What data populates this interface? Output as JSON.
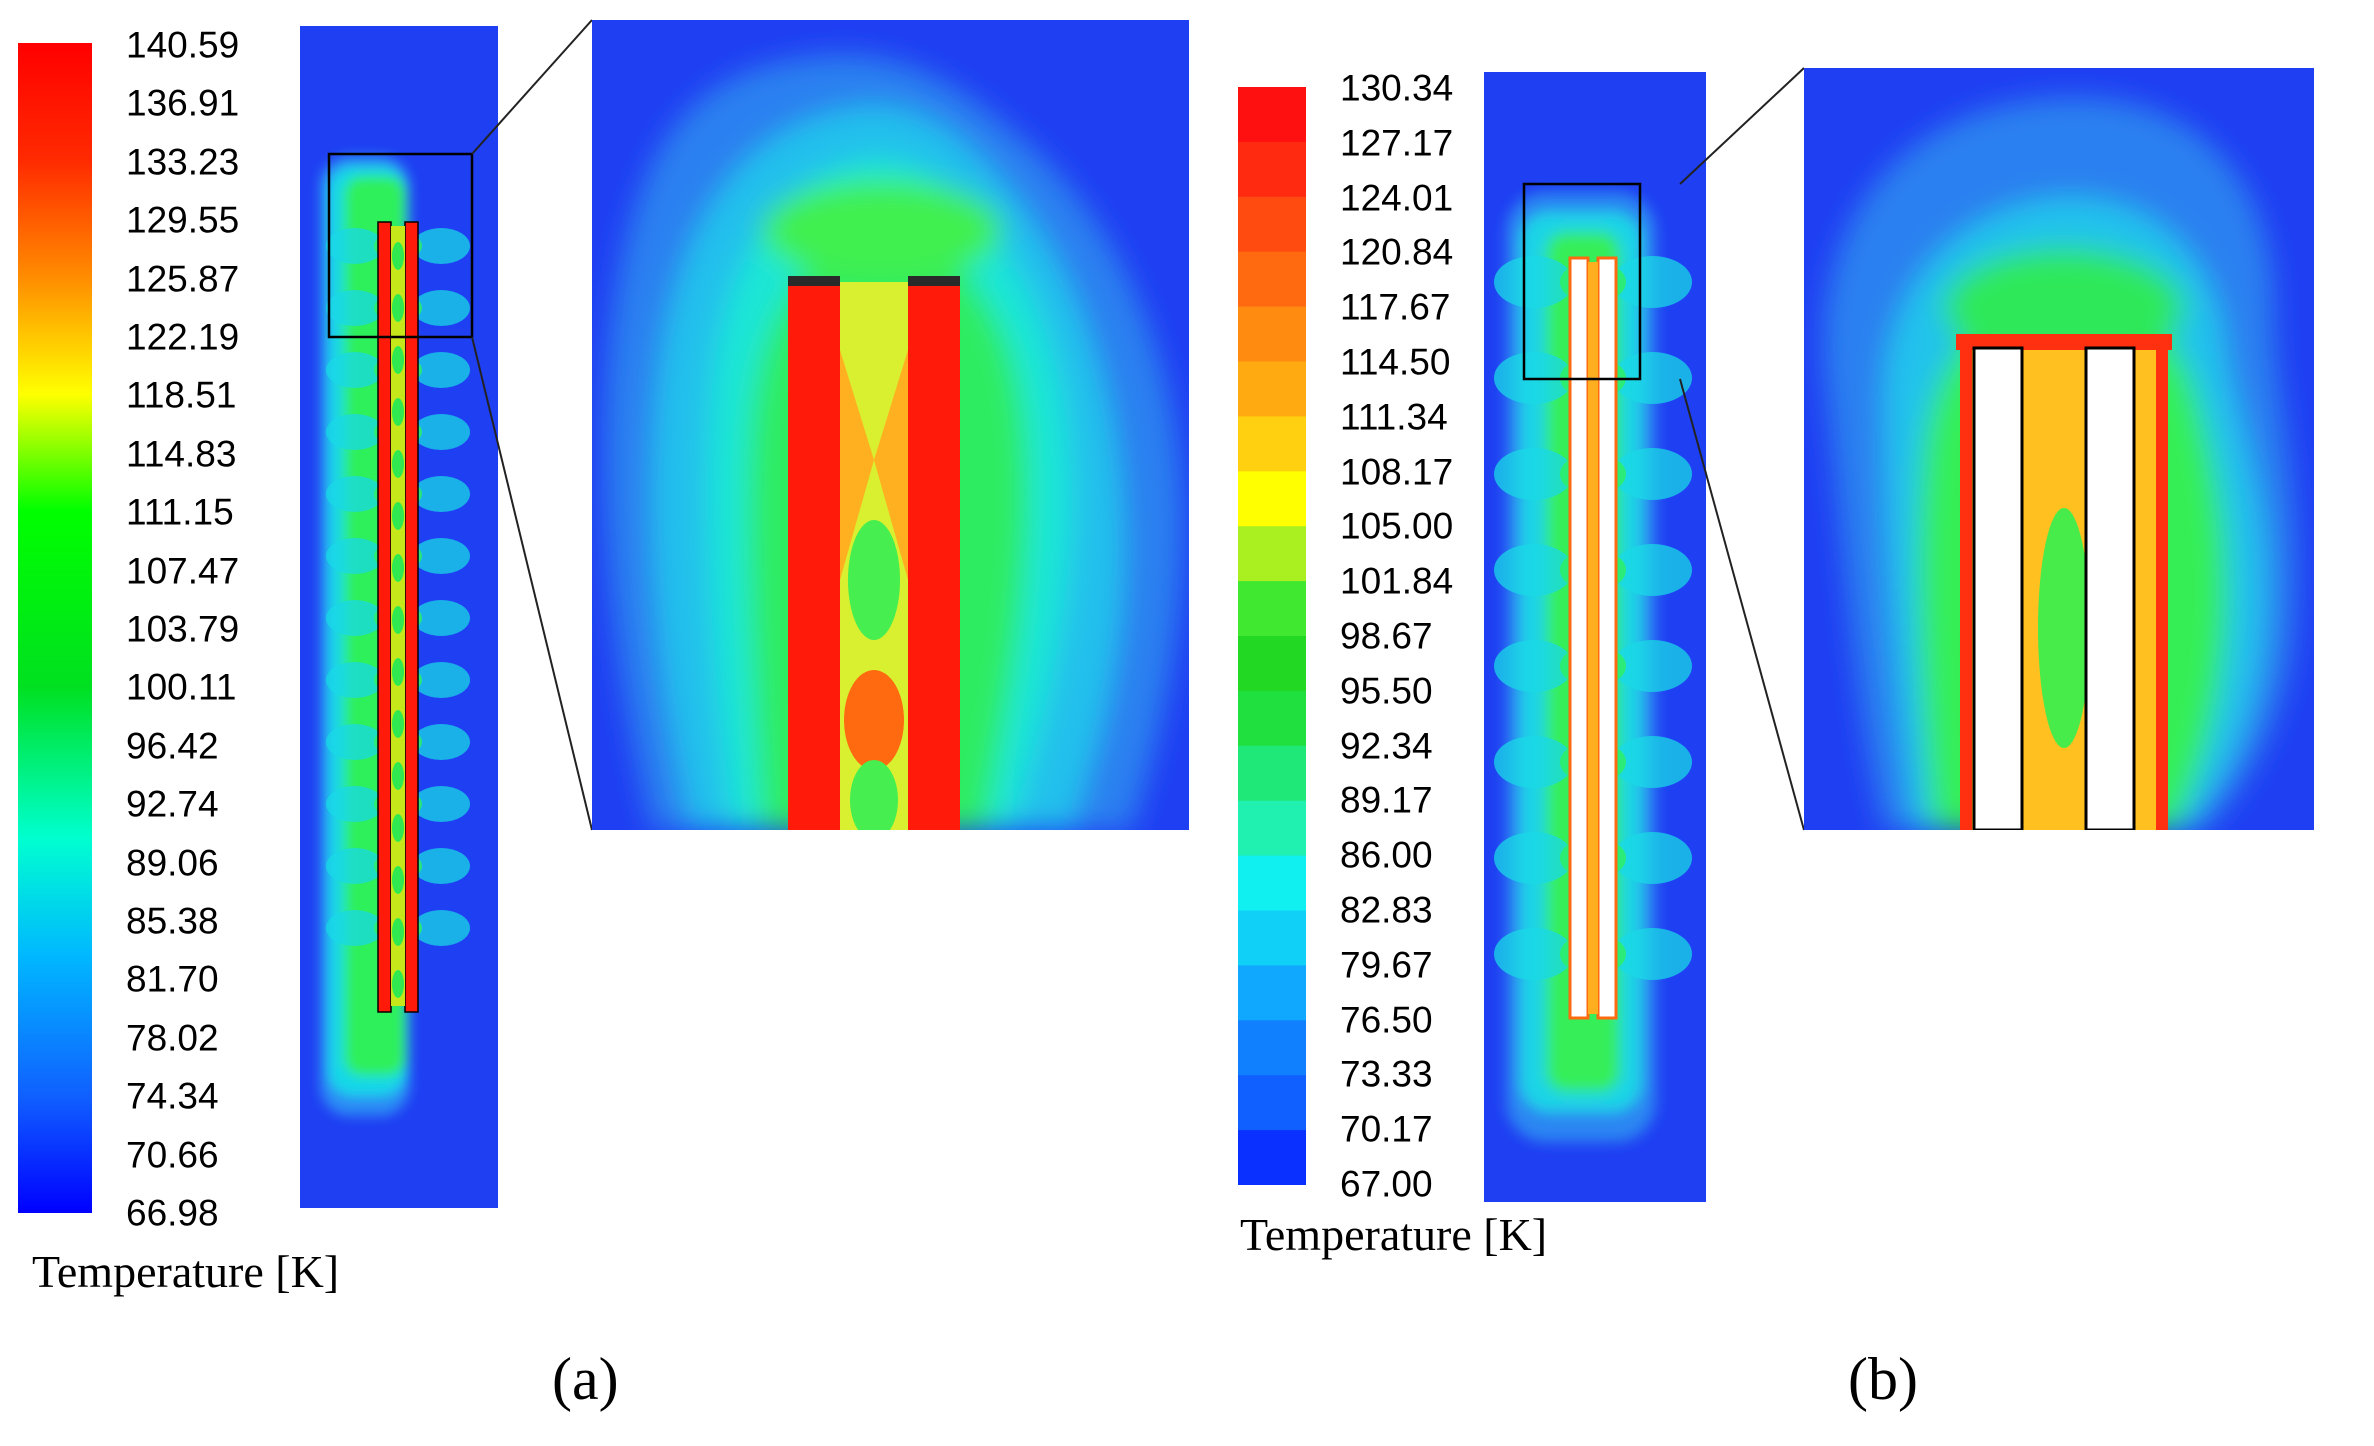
{
  "panels": [
    {
      "id": "a",
      "label": "(a)",
      "legend_title": "Temperature [K]",
      "ticks": [
        "140.59",
        "136.91",
        "133.23",
        "129.55",
        "125.87",
        "122.19",
        "118.51",
        "114.83",
        "111.15",
        "107.47",
        "103.79",
        "100.11",
        "96.42",
        "92.74",
        "89.06",
        "85.38",
        "81.70",
        "78.02",
        "74.34",
        "70.66",
        "66.98"
      ],
      "legend_style": "continuous"
    },
    {
      "id": "b",
      "label": "(b)",
      "legend_title": "Temperature [K]",
      "ticks": [
        "130.34",
        "127.17",
        "124.01",
        "120.84",
        "117.67",
        "114.50",
        "111.34",
        "108.17",
        "105.00",
        "101.84",
        "98.67",
        "95.50",
        "92.34",
        "89.17",
        "86.00",
        "82.83",
        "79.67",
        "76.50",
        "73.33",
        "70.17",
        "67.00"
      ],
      "legend_style": "banded"
    }
  ],
  "colors": {
    "background_field": "#1f3ff2",
    "hot": "#ff1a0a",
    "outline": "#000000"
  }
}
